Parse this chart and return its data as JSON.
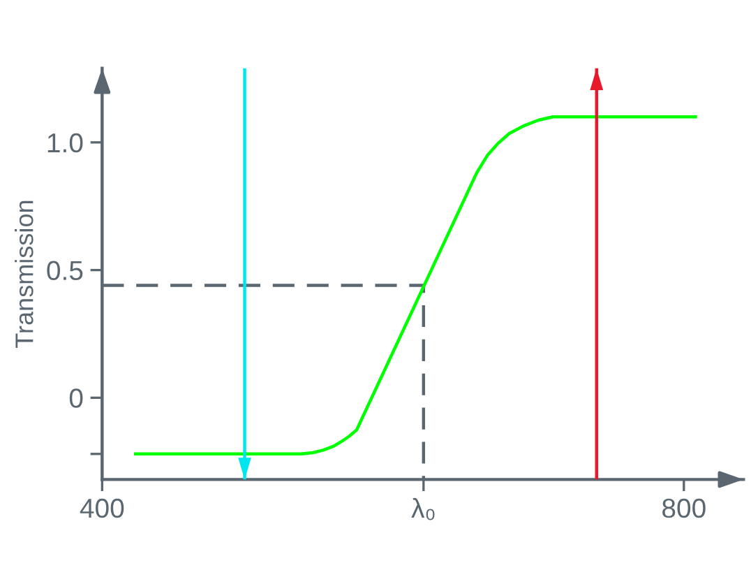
{
  "chart_data": {
    "type": "line",
    "ylabel": "Transmission",
    "xlim": [
      400,
      841
    ],
    "ylim": [
      -0.32,
      1.29
    ],
    "xticks": [
      400,
      {
        "value": 621,
        "label": "λ₀"
      },
      800
    ],
    "yticks": [
      {
        "value": -0.22,
        "label": null
      },
      0,
      0.5,
      {
        "value": 1,
        "label": "1.0"
      }
    ],
    "grid": false,
    "marker": "none",
    "series": [
      {
        "color": "#5b6770",
        "line_style": "dashed",
        "x": [
          400,
          621,
          621
        ],
        "values": [
          0.44,
          0.44,
          -0.32
        ]
      },
      {
        "color": "#00ff00",
        "x": [
          423,
          537,
          545,
          552,
          559,
          565,
          570,
          575,
          657.5,
          665,
          672,
          680,
          690,
          700,
          710,
          808
        ],
        "values": [
          -0.22,
          -0.22,
          -0.215,
          -0.205,
          -0.19,
          -0.17,
          -0.15,
          -0.126,
          0.88,
          0.95,
          0.995,
          1.035,
          1.065,
          1.087,
          1.1,
          1.1
        ]
      },
      {
        "color": "#00e5f0",
        "x": [
          498,
          498
        ],
        "values": [
          1.29,
          -0.32
        ]
      },
      {
        "color": "#e8192c",
        "x": [
          740,
          740
        ],
        "values": [
          -0.32,
          1.29
        ]
      }
    ]
  }
}
